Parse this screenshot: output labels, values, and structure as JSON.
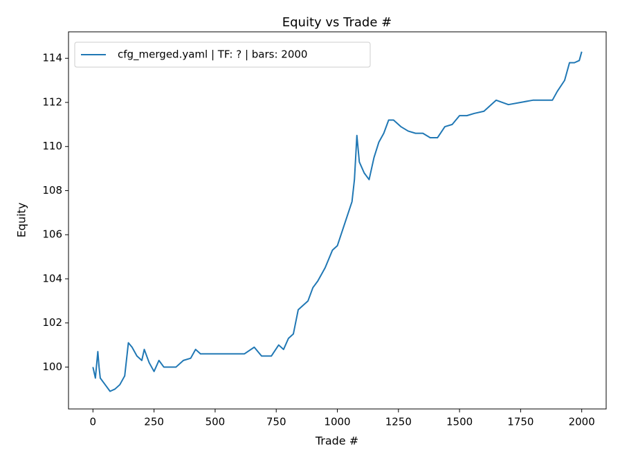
{
  "chart_data": {
    "type": "line",
    "title": "Equity vs Trade #",
    "xlabel": "Trade #",
    "ylabel": "Equity",
    "series": [
      {
        "name": "cfg_merged.yaml | TF: ? | bars: 2000",
        "color": "#1f77b4",
        "x": [
          0,
          10,
          20,
          25,
          30,
          50,
          70,
          90,
          110,
          130,
          145,
          160,
          180,
          200,
          210,
          230,
          250,
          270,
          290,
          320,
          340,
          370,
          400,
          420,
          440,
          500,
          550,
          620,
          660,
          690,
          730,
          760,
          780,
          800,
          820,
          840,
          860,
          880,
          900,
          920,
          950,
          980,
          1000,
          1030,
          1060,
          1070,
          1080,
          1090,
          1110,
          1130,
          1150,
          1170,
          1190,
          1210,
          1230,
          1260,
          1290,
          1320,
          1350,
          1380,
          1410,
          1440,
          1470,
          1500,
          1530,
          1560,
          1600,
          1650,
          1700,
          1750,
          1800,
          1880,
          1900,
          1930,
          1950,
          1970,
          1990,
          2000
        ],
        "values": [
          100.0,
          99.5,
          100.7,
          100.0,
          99.5,
          99.2,
          98.9,
          99.0,
          99.2,
          99.6,
          101.1,
          100.9,
          100.5,
          100.3,
          100.8,
          100.2,
          99.8,
          100.3,
          100.0,
          100.0,
          100.0,
          100.3,
          100.4,
          100.8,
          100.6,
          100.6,
          100.6,
          100.6,
          100.9,
          100.5,
          100.5,
          101.0,
          100.8,
          101.3,
          101.5,
          102.6,
          102.8,
          103.0,
          103.6,
          103.9,
          104.5,
          105.3,
          105.5,
          106.5,
          107.5,
          108.5,
          110.5,
          109.3,
          108.8,
          108.5,
          109.5,
          110.2,
          110.6,
          111.2,
          111.2,
          110.9,
          110.7,
          110.6,
          110.6,
          110.4,
          110.4,
          110.9,
          111.0,
          111.4,
          111.4,
          111.5,
          111.6,
          112.1,
          111.9,
          112.0,
          112.1,
          112.1,
          112.5,
          113.0,
          113.8,
          113.8,
          113.9,
          114.3
        ]
      }
    ],
    "xlim": [
      -100,
      2100
    ],
    "ylim": [
      98.1,
      115.2
    ],
    "xticks": [
      0,
      250,
      500,
      750,
      1000,
      1250,
      1500,
      1750,
      2000
    ],
    "yticks": [
      100,
      102,
      104,
      106,
      108,
      110,
      112,
      114
    ],
    "grid": false,
    "legend": "upper left"
  }
}
